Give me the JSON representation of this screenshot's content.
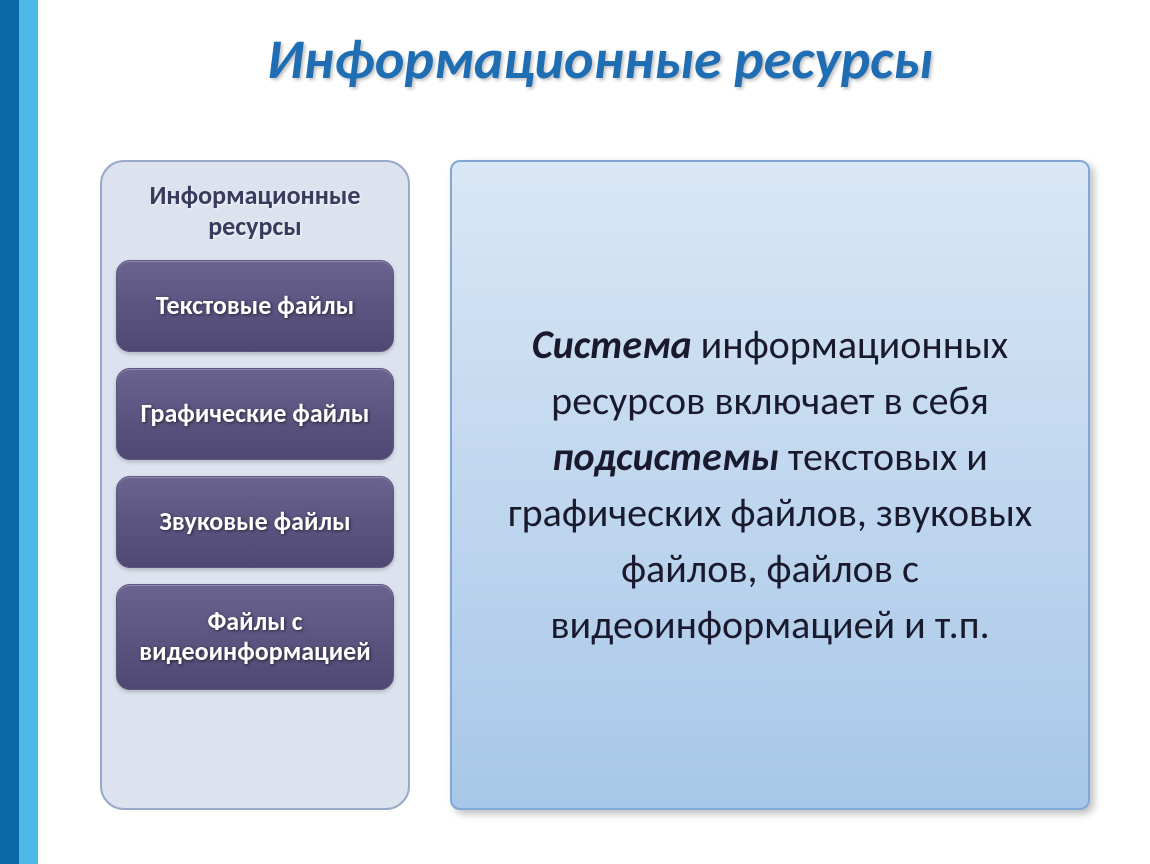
{
  "colors": {
    "title_color": "#1f6db3",
    "stripe_dark": "#0a6aa8",
    "stripe_light": "#4db9e6",
    "left_panel_bg": "#dce3ee",
    "left_panel_border": "#9aa9c7",
    "panel_header_color": "#3a3a5e",
    "item_bg_top": "#6a628f",
    "item_bg_bottom": "#4f4873",
    "item_border": "#5e5682",
    "right_panel_border": "#7fa8d4",
    "right_gradient_top": "#d9e7f6",
    "right_gradient_bottom": "#a8c7e8",
    "right_text_color": "#1a1a2e"
  },
  "title": "Информационные ресурсы",
  "left": {
    "header": "Информационные ресурсы",
    "items": [
      "Текстовые файлы",
      "Графические файлы",
      "Звуковые файлы",
      "Файлы с видеоинформацией"
    ]
  },
  "right": {
    "word_system": "Система",
    "part1": " информационных ресурсов включает в себя  ",
    "word_subsystems": "подсистемы",
    "part2": " текстовых и графических файлов, звуковых файлов, файлов с видеоинформацией и т.п."
  }
}
